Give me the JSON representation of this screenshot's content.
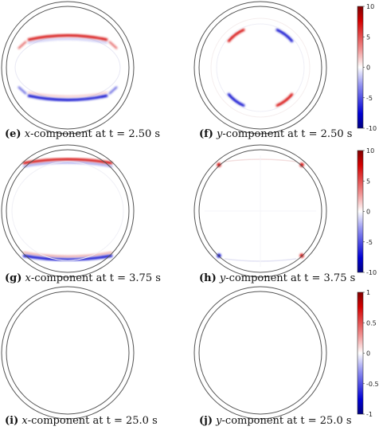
{
  "figure": {
    "panels": [
      {
        "id": "e",
        "label": "(e)",
        "variable": "x",
        "title_suffix": "-component at t = 2.50 s",
        "row": 0,
        "col": 0,
        "pattern": "x-early"
      },
      {
        "id": "f",
        "label": "(f)",
        "variable": "y",
        "title_suffix": "-component at t = 2.50 s",
        "row": 0,
        "col": 1,
        "pattern": "y-early"
      },
      {
        "id": "g",
        "label": "(g)",
        "variable": "x",
        "title_suffix": "-component at t = 3.75 s",
        "row": 1,
        "col": 0,
        "pattern": "x-mid"
      },
      {
        "id": "h",
        "label": "(h)",
        "variable": "y",
        "title_suffix": "-component at t = 3.75 s",
        "row": 1,
        "col": 1,
        "pattern": "y-mid"
      },
      {
        "id": "i",
        "label": "(i)",
        "variable": "x",
        "title_suffix": "-component at t = 25.0 s",
        "row": 2,
        "col": 0,
        "pattern": "blank"
      },
      {
        "id": "j",
        "label": "(j)",
        "variable": "y",
        "title_suffix": "-component at t = 25.0 s",
        "row": 2,
        "col": 1,
        "pattern": "blank"
      }
    ],
    "colorbars": [
      {
        "row": 0,
        "ticks": [
          "10",
          "5",
          "0",
          "-5",
          "-10"
        ],
        "values": [
          10,
          5,
          0,
          -5,
          -10
        ],
        "range": [
          -10,
          10
        ]
      },
      {
        "row": 1,
        "ticks": [
          "10",
          "5",
          "0",
          "-5",
          "-10"
        ],
        "values": [
          10,
          5,
          0,
          -5,
          -10
        ],
        "range": [
          -10,
          10
        ]
      },
      {
        "row": 2,
        "ticks": [
          "1",
          "0.5",
          "0",
          "-0.5",
          "-1"
        ],
        "values": [
          1,
          0.5,
          0,
          -0.5,
          -1
        ],
        "range": [
          -1,
          1
        ]
      }
    ],
    "colors": {
      "positive": "#d40000",
      "negative": "#0000cc",
      "zero": "#ffffff",
      "circle": "#555555"
    }
  }
}
